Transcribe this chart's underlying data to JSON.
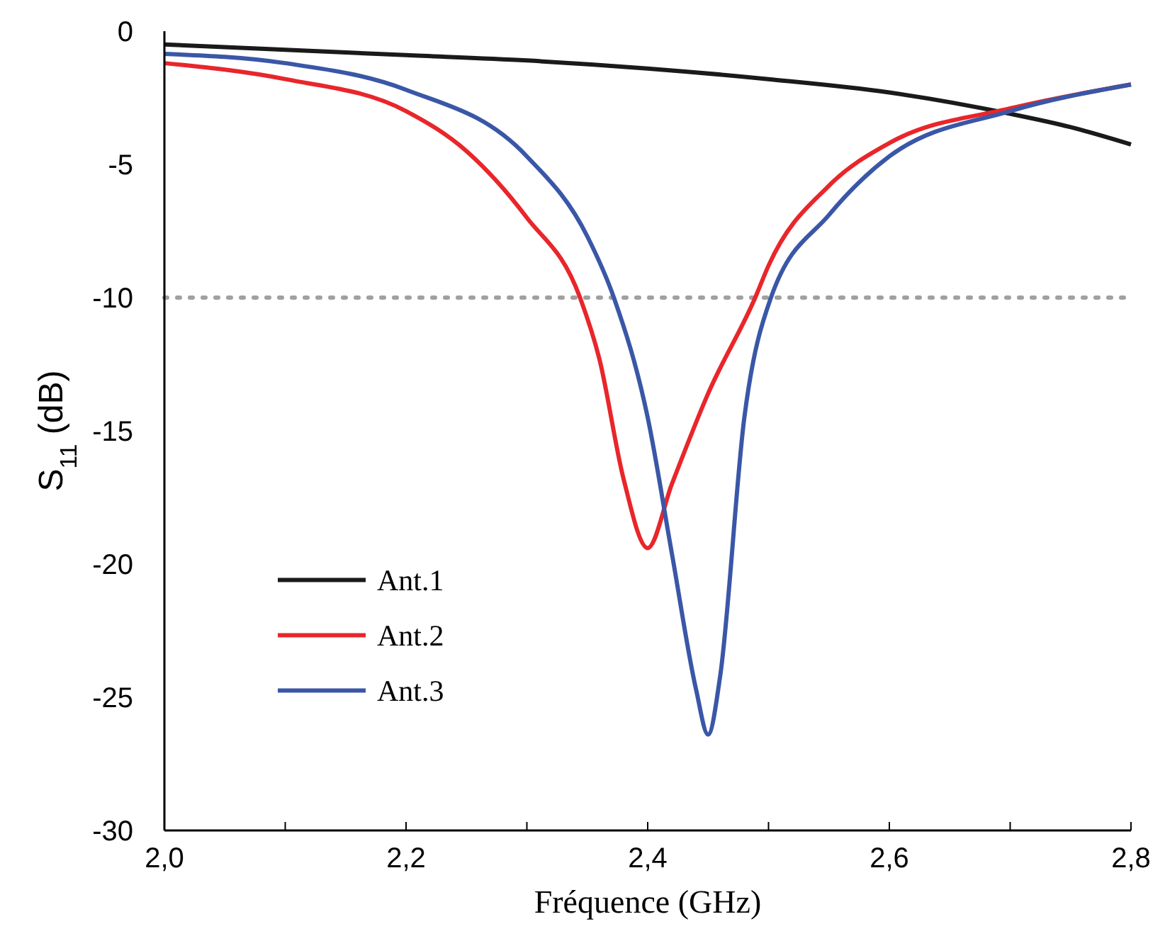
{
  "chart_data": {
    "type": "line",
    "xlabel": "Fréquence (GHz)",
    "ylabel": "S$_{11}$ (dB)",
    "xlim": [
      2.0,
      2.8
    ],
    "ylim": [
      -30,
      0
    ],
    "xticks": [
      {
        "value": 2.0,
        "label": "2,0"
      },
      {
        "value": 2.1,
        "label": null
      },
      {
        "value": 2.2,
        "label": "2,2"
      },
      {
        "value": 2.3,
        "label": null
      },
      {
        "value": 2.4,
        "label": "2,4"
      },
      {
        "value": 2.5,
        "label": null
      },
      {
        "value": 2.6,
        "label": "2,6"
      },
      {
        "value": 2.7,
        "label": null
      },
      {
        "value": 2.8,
        "label": "2,8"
      }
    ],
    "yticks": [
      -30,
      -25,
      -20,
      -15,
      -10,
      -5,
      0
    ],
    "grid": false,
    "legend": "bottom left",
    "line_style": "solid",
    "marker": "none",
    "ref_lines": [
      {
        "axis": "y",
        "value": -10,
        "color": "#a0a0a0",
        "line_style": "dotted"
      }
    ],
    "series": [
      {
        "name": "Ant.1",
        "color": "#1a1a1a",
        "x": [
          2.0,
          2.1,
          2.2,
          2.3,
          2.4,
          2.5,
          2.6,
          2.7,
          2.75,
          2.8
        ],
        "values": [
          -0.5,
          -0.7,
          -0.9,
          -1.1,
          -1.4,
          -1.8,
          -2.3,
          -3.1,
          -3.6,
          -4.25
        ]
      },
      {
        "name": "Ant.2",
        "color": "#e8262b",
        "x": [
          2.0,
          2.1,
          2.2,
          2.25,
          2.3,
          2.344,
          2.36,
          2.38,
          2.4,
          2.42,
          2.45,
          2.489,
          2.5,
          2.55,
          2.6,
          2.7,
          2.8
        ],
        "values": [
          -1.2,
          -1.8,
          -3.0,
          -4.5,
          -7.0,
          -10,
          -12.3,
          -16.8,
          -19.4,
          -17.0,
          -13.6,
          -10,
          -8.8,
          -5.8,
          -4.2,
          -2.9,
          -2.0
        ]
      },
      {
        "name": "Ant.3",
        "color": "#3a57a7",
        "x": [
          2.0,
          2.1,
          2.2,
          2.3,
          2.35,
          2.372,
          2.4,
          2.42,
          2.44,
          2.45,
          2.46,
          2.48,
          2.502,
          2.55,
          2.6,
          2.7,
          2.8
        ],
        "values": [
          -0.85,
          -1.2,
          -2.2,
          -4.7,
          -7.7,
          -10,
          -14.5,
          -19.6,
          -24.7,
          -26.4,
          -24.2,
          -14.5,
          -10,
          -6.9,
          -4.7,
          -3.0,
          -2.0
        ]
      }
    ]
  }
}
